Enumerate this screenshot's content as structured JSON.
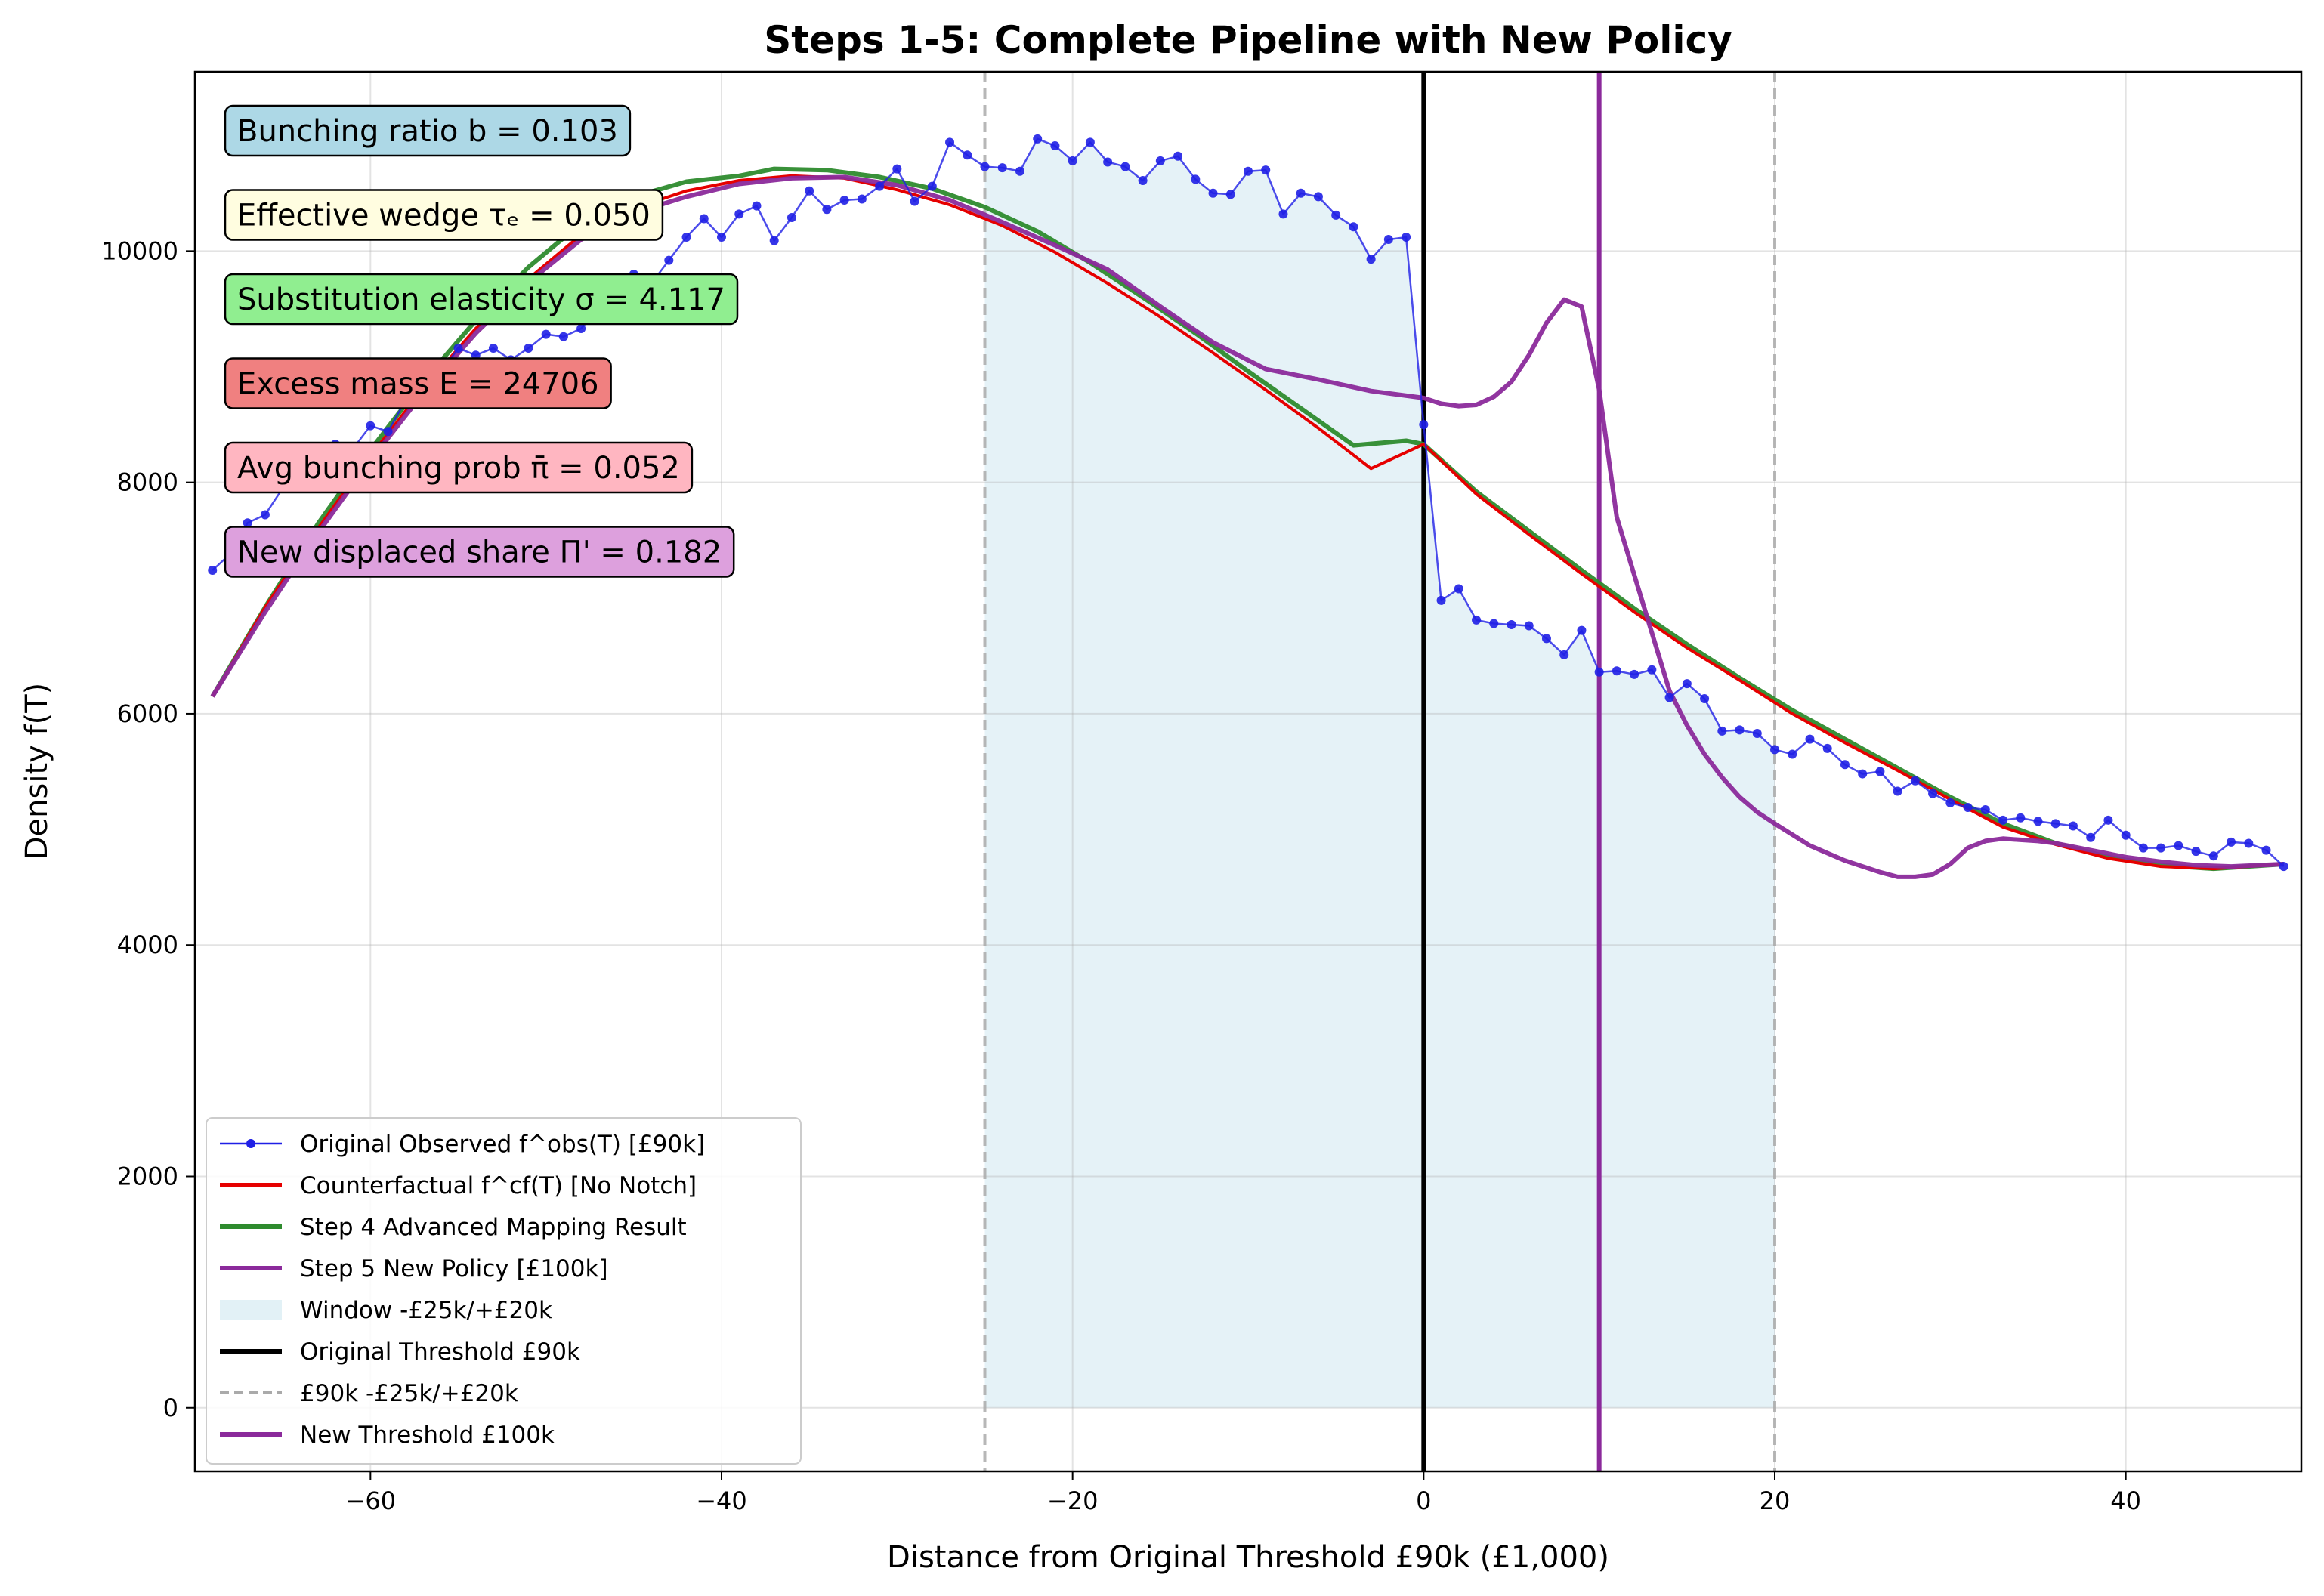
{
  "chart_data": {
    "type": "line",
    "title": "Steps 1-5: Complete Pipeline with New Policy",
    "xlabel": "Distance from Original Threshold £90k (£1,000)",
    "ylabel": "Density f(T)",
    "xlim": [
      -70,
      50
    ],
    "ylim": [
      -550,
      11550
    ],
    "xticks": [
      -60,
      -40,
      -20,
      0,
      20,
      40
    ],
    "yticks": [
      0,
      2000,
      4000,
      6000,
      8000,
      10000
    ],
    "grid": true,
    "legend_position": "lower-left",
    "window": {
      "name": "Window -£25k/+£20k",
      "from": -25,
      "to": 20,
      "color": "#add8e6"
    },
    "vlines": [
      {
        "name": "Original Threshold £90k",
        "x": 0,
        "color": "#000000",
        "style": "solid"
      },
      {
        "name": "£90k -£25k/+£20k",
        "x": [
          -25,
          20
        ],
        "color": "#aaaaaa",
        "style": "dashed"
      },
      {
        "name": "New Threshold £100k",
        "x": 10,
        "color": "#8b2a9b",
        "style": "solid"
      }
    ],
    "annotations": [
      {
        "text": "Bunching ratio b = 0.103",
        "color": "#add8e6"
      },
      {
        "text": "Effective wedge τₑ = 0.050",
        "color": "#fffde0"
      },
      {
        "text": "Substitution elasticity σ = 4.117",
        "color": "#90ee90"
      },
      {
        "text": "Excess mass E = 24706",
        "color": "#f08080"
      },
      {
        "text": "Avg bunching prob π̄ = 0.052",
        "color": "#ffb6c1"
      },
      {
        "text": "New displaced share Π' = 0.182",
        "color": "#dda0dd"
      }
    ],
    "series": [
      {
        "name": "Original Observed f^obs(T) [£90k]",
        "color": "#1f1fe6",
        "x": [
          -69,
          -68,
          -67,
          -66,
          -65,
          -64,
          -63,
          -62,
          -61,
          -60,
          -59,
          -58,
          -57,
          -56,
          -55,
          -54,
          -53,
          -52,
          -51,
          -50,
          -49,
          -48,
          -47,
          -46,
          -45,
          -44,
          -43,
          -42,
          -41,
          -40,
          -39,
          -38,
          -37,
          -36,
          -35,
          -34,
          -33,
          -32,
          -31,
          -30,
          -29,
          -28,
          -27,
          -26,
          -25,
          -24,
          -23,
          -22,
          -21,
          -20,
          -19,
          -18,
          -17,
          -16,
          -15,
          -14,
          -13,
          -12,
          -11,
          -10,
          -9,
          -8,
          -7,
          -6,
          -5,
          -4,
          -3,
          -2,
          -1,
          0,
          1,
          2,
          3,
          4,
          5,
          6,
          7,
          8,
          9,
          10,
          11,
          12,
          13,
          14,
          15,
          16,
          17,
          18,
          19,
          20,
          21,
          22,
          23,
          24,
          25,
          26,
          27,
          28,
          29,
          30,
          31,
          32,
          33,
          34,
          35,
          36,
          37,
          38,
          39,
          40,
          41,
          42,
          43,
          44,
          45,
          46,
          47,
          48,
          49
        ],
        "values": [
          7240,
          7380,
          7650,
          7720,
          7950,
          8060,
          8260,
          8330,
          8290,
          8490,
          8440,
          8710,
          8740,
          8950,
          9160,
          9100,
          9160,
          9060,
          9160,
          9280,
          9260,
          9330,
          9500,
          9620,
          9800,
          9720,
          9920,
          10120,
          10280,
          10120,
          10320,
          10390,
          10090,
          10290,
          10520,
          10360,
          10440,
          10450,
          10560,
          10710,
          10430,
          10560,
          10940,
          10830,
          10730,
          10720,
          10690,
          10970,
          10910,
          10780,
          10940,
          10770,
          10730,
          10610,
          10780,
          10820,
          10620,
          10500,
          10490,
          10690,
          10700,
          10320,
          10500,
          10470,
          10310,
          10210,
          9930,
          10100,
          10120,
          8500,
          6980,
          7080,
          6810,
          6780,
          6770,
          6760,
          6650,
          6510,
          6720,
          6360,
          6370,
          6340,
          6380,
          6140,
          6260,
          6130,
          5850,
          5860,
          5830,
          5690,
          5650,
          5780,
          5700,
          5560,
          5480,
          5500,
          5330,
          5420,
          5310,
          5230,
          5190,
          5170,
          5080,
          5100,
          5070,
          5050,
          5030,
          4930,
          5080,
          4950,
          4840,
          4840,
          4860,
          4810,
          4770,
          4890,
          4880,
          4820,
          4680
        ]
      },
      {
        "name": "Counterfactual f^cf(T) [No Notch]",
        "color": "#e60000",
        "x": [
          -69,
          -66,
          -63,
          -60,
          -57,
          -54,
          -51,
          -48,
          -45,
          -42,
          -39,
          -36,
          -33,
          -30,
          -27,
          -24,
          -21,
          -18,
          -15,
          -12,
          -9,
          -6,
          -3,
          0,
          3,
          6,
          9,
          12,
          15,
          18,
          21,
          24,
          27,
          30,
          33,
          36,
          39,
          42,
          45,
          49
        ],
        "values": [
          6150,
          6920,
          7600,
          8230,
          8810,
          9330,
          9760,
          10140,
          10370,
          10520,
          10610,
          10650,
          10630,
          10530,
          10400,
          10220,
          9990,
          9720,
          9430,
          9120,
          8800,
          8470,
          8120,
          8330,
          7900,
          7550,
          7210,
          6880,
          6570,
          6290,
          6000,
          5750,
          5510,
          5260,
          5020,
          4870,
          4750,
          4680,
          4660,
          4700
        ]
      },
      {
        "name": "Step 4 Advanced Mapping Result",
        "color": "#2e8b2e",
        "x": [
          -69,
          -66,
          -63,
          -60,
          -57,
          -54,
          -51,
          -48,
          -45,
          -42,
          -39,
          -37,
          -34,
          -31,
          -28,
          -25,
          -22,
          -19,
          -16,
          -13,
          -10,
          -7,
          -4,
          -1,
          0,
          3,
          6,
          9,
          12,
          15,
          18,
          21,
          24,
          27,
          30,
          33,
          36,
          39,
          42,
          45,
          49
        ],
        "values": [
          6150,
          6920,
          7640,
          8280,
          8870,
          9400,
          9860,
          10240,
          10470,
          10600,
          10650,
          10710,
          10700,
          10640,
          10540,
          10380,
          10170,
          9900,
          9600,
          9290,
          8960,
          8640,
          8320,
          8360,
          8330,
          7920,
          7580,
          7240,
          6910,
          6600,
          6310,
          6030,
          5780,
          5530,
          5280,
          5050,
          4880,
          4760,
          4690,
          4660,
          4700
        ]
      },
      {
        "name": "Step 5 New Policy [£100k]",
        "color": "#8b2a9b",
        "x": [
          -69,
          -66,
          -63,
          -60,
          -57,
          -54,
          -51,
          -48,
          -45,
          -42,
          -39,
          -36,
          -33,
          -30,
          -27,
          -24,
          -21,
          -18,
          -15,
          -12,
          -9,
          -6,
          -3,
          0,
          1,
          2,
          3,
          4,
          5,
          6,
          7,
          8,
          9,
          10,
          11,
          12,
          13,
          14,
          15,
          16,
          17,
          18,
          19,
          20,
          22,
          24,
          26,
          27,
          28,
          29,
          30,
          31,
          32,
          33,
          34,
          35,
          36,
          38,
          40,
          42,
          44,
          46,
          49
        ],
        "values": [
          6150,
          6880,
          7560,
          8190,
          8770,
          9290,
          9730,
          10100,
          10330,
          10470,
          10580,
          10630,
          10640,
          10570,
          10440,
          10250,
          10050,
          9840,
          9520,
          9210,
          8980,
          8890,
          8790,
          8730,
          8680,
          8660,
          8670,
          8740,
          8870,
          9100,
          9380,
          9580,
          9520,
          8800,
          7700,
          7200,
          6700,
          6200,
          5900,
          5650,
          5450,
          5280,
          5150,
          5050,
          4860,
          4730,
          4630,
          4590,
          4590,
          4610,
          4700,
          4840,
          4900,
          4920,
          4910,
          4900,
          4880,
          4820,
          4760,
          4720,
          4690,
          4680,
          4700
        ]
      }
    ]
  }
}
